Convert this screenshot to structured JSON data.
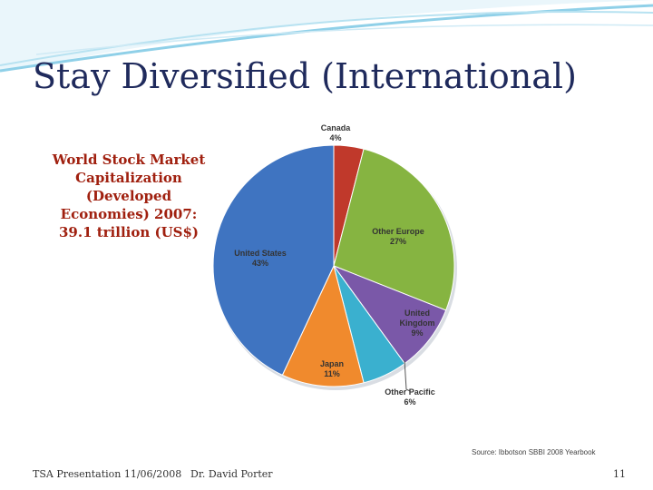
{
  "slide": {
    "title": "Stay Diversified (International)",
    "caption": "World Stock Market Capitalization (Developed Economies) 2007: 39.1 trillion (US$)",
    "source": "Source: Ibbotson SBBI 2008 Yearbook",
    "footer_left": "TSA Presentation 11/06/2008",
    "footer_center": "Dr. David Porter",
    "page_number": "11"
  },
  "colors": {
    "title": "#1f2a5c",
    "caption": "#a0200f",
    "swoosh": "#8fd0e8"
  },
  "chart_data": {
    "type": "pie",
    "title": "",
    "slices": [
      {
        "name": "Canada",
        "value": 4,
        "label": "4%",
        "color": "#c0392b"
      },
      {
        "name": "Other Europe",
        "value": 27,
        "label": "27%",
        "color": "#86b441"
      },
      {
        "name": "United Kingdom",
        "value": 9,
        "label": "9%",
        "color": "#7a58a8"
      },
      {
        "name": "Other Pacific",
        "value": 6,
        "label": "6%",
        "color": "#3ab0cf"
      },
      {
        "name": "Japan",
        "value": 11,
        "label": "11%",
        "color": "#f08a2d"
      },
      {
        "name": "United States",
        "value": 43,
        "label": "43%",
        "color": "#3f74c1"
      }
    ]
  }
}
